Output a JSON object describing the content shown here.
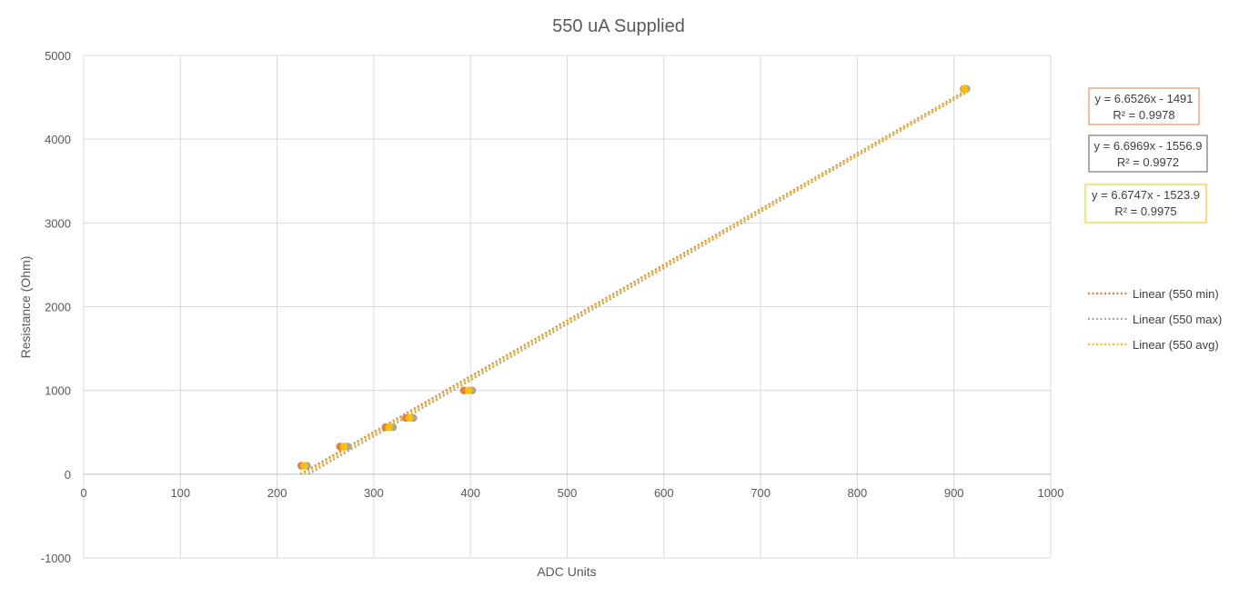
{
  "chart_data": {
    "type": "scatter",
    "title": "550 uA Supplied",
    "xlabel": "ADC Units",
    "ylabel": "Resistance (Ohm)",
    "xlim": [
      0,
      1000
    ],
    "ylim": [
      -1000,
      5000
    ],
    "x_ticks": [
      0,
      100,
      200,
      300,
      400,
      500,
      600,
      700,
      800,
      900,
      1000
    ],
    "y_ticks": [
      -1000,
      0,
      1000,
      2000,
      3000,
      4000,
      5000
    ],
    "grid": true,
    "legend_position": "right",
    "series": [
      {
        "name": "550 min",
        "color": "#ED7D31",
        "points": [
          [
            225,
            100
          ],
          [
            265,
            330
          ],
          [
            312,
            560
          ],
          [
            333,
            670
          ],
          [
            393,
            1000
          ],
          [
            910,
            4600
          ]
        ]
      },
      {
        "name": "550 max",
        "color": "#A5A5A5",
        "points": [
          [
            231,
            100
          ],
          [
            273,
            330
          ],
          [
            320,
            560
          ],
          [
            341,
            670
          ],
          [
            402,
            1000
          ],
          [
            913,
            4600
          ]
        ]
      },
      {
        "name": "550 avg",
        "color": "#FFC000",
        "points": [
          [
            228,
            100
          ],
          [
            269,
            330
          ],
          [
            316,
            560
          ],
          [
            337,
            670
          ],
          [
            398,
            1000
          ],
          [
            911,
            4600
          ]
        ]
      }
    ],
    "trendlines": [
      {
        "legend": "Linear (550 min)",
        "color": "#ED7D31",
        "slope": 6.6526,
        "intercept": -1491,
        "equation": "y = 6.6526x - 1491",
        "r2": "R² = 0.9978"
      },
      {
        "legend": "Linear (550 max)",
        "color": "#A5A5A5",
        "slope": 6.6969,
        "intercept": -1556.9,
        "equation": "y = 6.6969x - 1556.9",
        "r2": "R² = 0.9972"
      },
      {
        "legend": "Linear (550 avg)",
        "color": "#FFC000",
        "slope": 6.6747,
        "intercept": -1523.9,
        "equation": "y = 6.6747x - 1523.9",
        "r2": "R² = 0.9975"
      }
    ]
  }
}
